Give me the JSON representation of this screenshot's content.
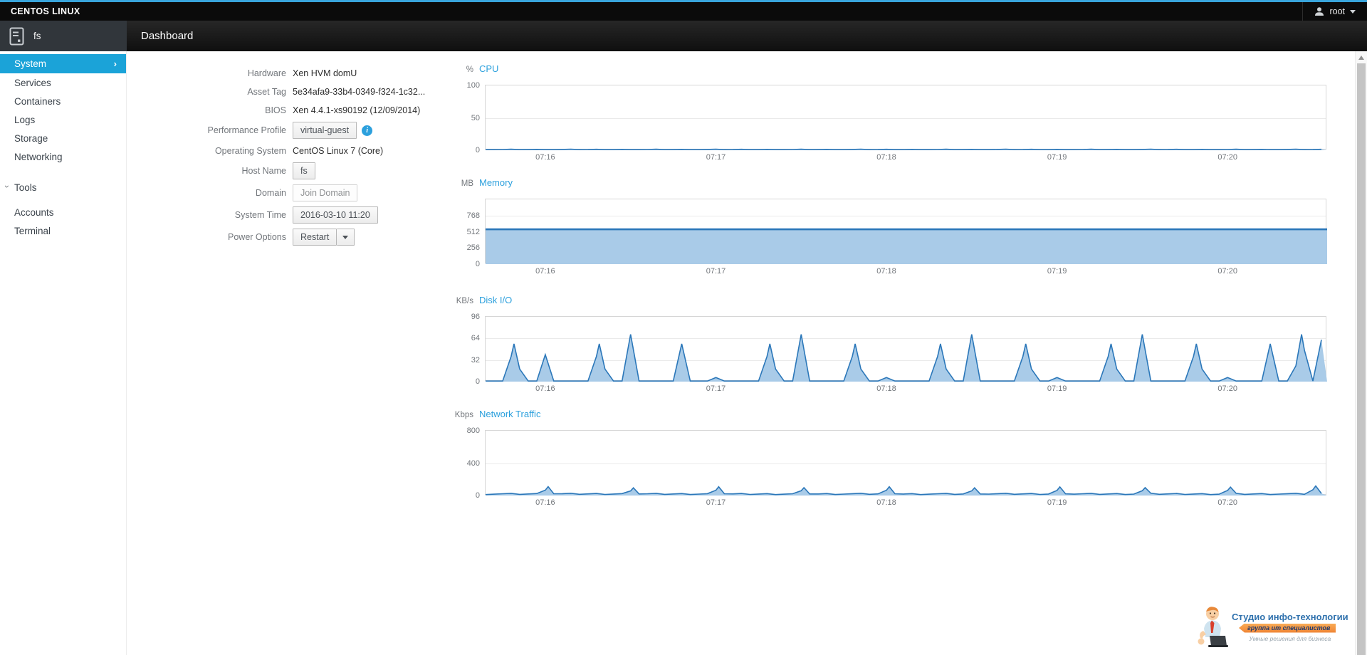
{
  "topbar": {
    "brand": "CENTOS LINUX",
    "user": "root"
  },
  "host": {
    "name": "fs"
  },
  "page": {
    "title": "Dashboard"
  },
  "sidebar": {
    "items": [
      {
        "label": "System",
        "selected": true
      },
      {
        "label": "Services",
        "selected": false
      },
      {
        "label": "Containers",
        "selected": false
      },
      {
        "label": "Logs",
        "selected": false
      },
      {
        "label": "Storage",
        "selected": false
      },
      {
        "label": "Networking",
        "selected": false
      }
    ],
    "tools": {
      "label": "Tools",
      "items": [
        {
          "label": "Accounts"
        },
        {
          "label": "Terminal"
        }
      ]
    }
  },
  "system_info": {
    "rows": [
      {
        "label": "Hardware",
        "value": "Xen HVM domU",
        "type": "text"
      },
      {
        "label": "Asset Tag",
        "value": "5e34afa9-33b4-0349-f324-1c32...",
        "type": "text"
      },
      {
        "label": "BIOS",
        "value": "Xen 4.4.1-xs90192 (12/09/2014)",
        "type": "text"
      },
      {
        "label": "Performance Profile",
        "value": "virtual-guest",
        "type": "button_info"
      },
      {
        "label": "Operating System",
        "value": "CentOS Linux 7 (Core)",
        "type": "text"
      },
      {
        "label": "Host Name",
        "value": "fs",
        "type": "button"
      },
      {
        "label": "Domain",
        "value": "Join Domain",
        "type": "button_muted"
      },
      {
        "label": "System Time",
        "value": "2016-03-10 11:20",
        "type": "button"
      },
      {
        "label": "Power Options",
        "value": "Restart",
        "type": "split_button"
      }
    ]
  },
  "chart_data": [
    {
      "id": "cpu",
      "type": "line",
      "title": "CPU",
      "unit": "%",
      "ylim": [
        0,
        100
      ],
      "trange": [
        0,
        296
      ],
      "yticks": [
        {
          "v": 100,
          "label": "100"
        },
        {
          "v": 50,
          "label": "50"
        },
        {
          "v": 0,
          "label": "0"
        }
      ],
      "xticks": [
        {
          "t": 21,
          "label": "07:16"
        },
        {
          "t": 81,
          "label": "07:17"
        },
        {
          "t": 141,
          "label": "07:18"
        },
        {
          "t": 201,
          "label": "07:19"
        },
        {
          "t": 261,
          "label": "07:20"
        }
      ],
      "baseline": 1.0,
      "noise": 0.7,
      "spikes": [],
      "grid": true,
      "legend": "none"
    },
    {
      "id": "memory",
      "type": "area",
      "title": "Memory",
      "unit": "MB",
      "ylim": [
        0,
        1024
      ],
      "trange": [
        0,
        296
      ],
      "yticks": [
        {
          "v": 768,
          "label": "768"
        },
        {
          "v": 512,
          "label": "512"
        },
        {
          "v": 256,
          "label": "256"
        },
        {
          "v": 0,
          "label": "0"
        }
      ],
      "xticks": [
        {
          "t": 21,
          "label": "07:16"
        },
        {
          "t": 81,
          "label": "07:17"
        },
        {
          "t": 141,
          "label": "07:18"
        },
        {
          "t": 201,
          "label": "07:19"
        },
        {
          "t": 261,
          "label": "07:20"
        }
      ],
      "constant": 550,
      "grid": true,
      "legend": "none"
    },
    {
      "id": "disk",
      "type": "line",
      "title": "Disk I/O",
      "unit": "KB/s",
      "ylim": [
        0,
        96
      ],
      "trange": [
        0,
        296
      ],
      "yticks": [
        {
          "v": 96,
          "label": "96"
        },
        {
          "v": 64,
          "label": "64"
        },
        {
          "v": 32,
          "label": "32"
        },
        {
          "v": 0,
          "label": "0"
        }
      ],
      "xticks": [
        {
          "t": 21,
          "label": "07:16"
        },
        {
          "t": 81,
          "label": "07:17"
        },
        {
          "t": 141,
          "label": "07:18"
        },
        {
          "t": 201,
          "label": "07:19"
        },
        {
          "t": 261,
          "label": "07:20"
        }
      ],
      "baseline": 0.5,
      "noise": 0.4,
      "spike_halfwidth": 3,
      "spikes": [
        [
          10,
          56
        ],
        [
          21,
          40
        ],
        [
          40,
          56
        ],
        [
          51,
          70
        ],
        [
          69,
          56
        ],
        [
          81,
          6
        ],
        [
          100,
          56
        ],
        [
          111,
          70
        ],
        [
          130,
          56
        ],
        [
          141,
          6
        ],
        [
          160,
          56
        ],
        [
          171,
          70
        ],
        [
          190,
          56
        ],
        [
          201,
          6
        ],
        [
          220,
          56
        ],
        [
          231,
          70
        ],
        [
          250,
          56
        ],
        [
          261,
          6
        ],
        [
          276,
          56
        ],
        [
          287,
          70
        ],
        [
          294,
          62
        ]
      ],
      "grid": true,
      "legend": "none"
    },
    {
      "id": "network",
      "type": "line",
      "title": "Network Traffic",
      "unit": "Kbps",
      "ylim": [
        0,
        800
      ],
      "trange": [
        0,
        296
      ],
      "yticks": [
        {
          "v": 800,
          "label": "800"
        },
        {
          "v": 400,
          "label": "400"
        },
        {
          "v": 0,
          "label": "0"
        }
      ],
      "xticks": [
        {
          "t": 21,
          "label": "07:16"
        },
        {
          "t": 81,
          "label": "07:17"
        },
        {
          "t": 141,
          "label": "07:18"
        },
        {
          "t": 201,
          "label": "07:19"
        },
        {
          "t": 261,
          "label": "07:20"
        }
      ],
      "baseline": 20,
      "noise": 9,
      "spike_halfwidth": 2.5,
      "spikes": [
        [
          22,
          110
        ],
        [
          52,
          95
        ],
        [
          82,
          108
        ],
        [
          112,
          98
        ],
        [
          142,
          108
        ],
        [
          172,
          95
        ],
        [
          202,
          106
        ],
        [
          232,
          98
        ],
        [
          262,
          104
        ],
        [
          292,
          118
        ]
      ],
      "grid": true,
      "legend": "none"
    }
  ],
  "watermark": {
    "title": "Студио инфо-технологии",
    "subtitle": "группа ит специалистов",
    "tagline": "Умные решения для бизнеса"
  },
  "colors": {
    "accent": "#1ba3d8",
    "link": "#2ca0dd",
    "chart_line": "#2b77b9",
    "chart_fill": "#a9cbe8"
  }
}
